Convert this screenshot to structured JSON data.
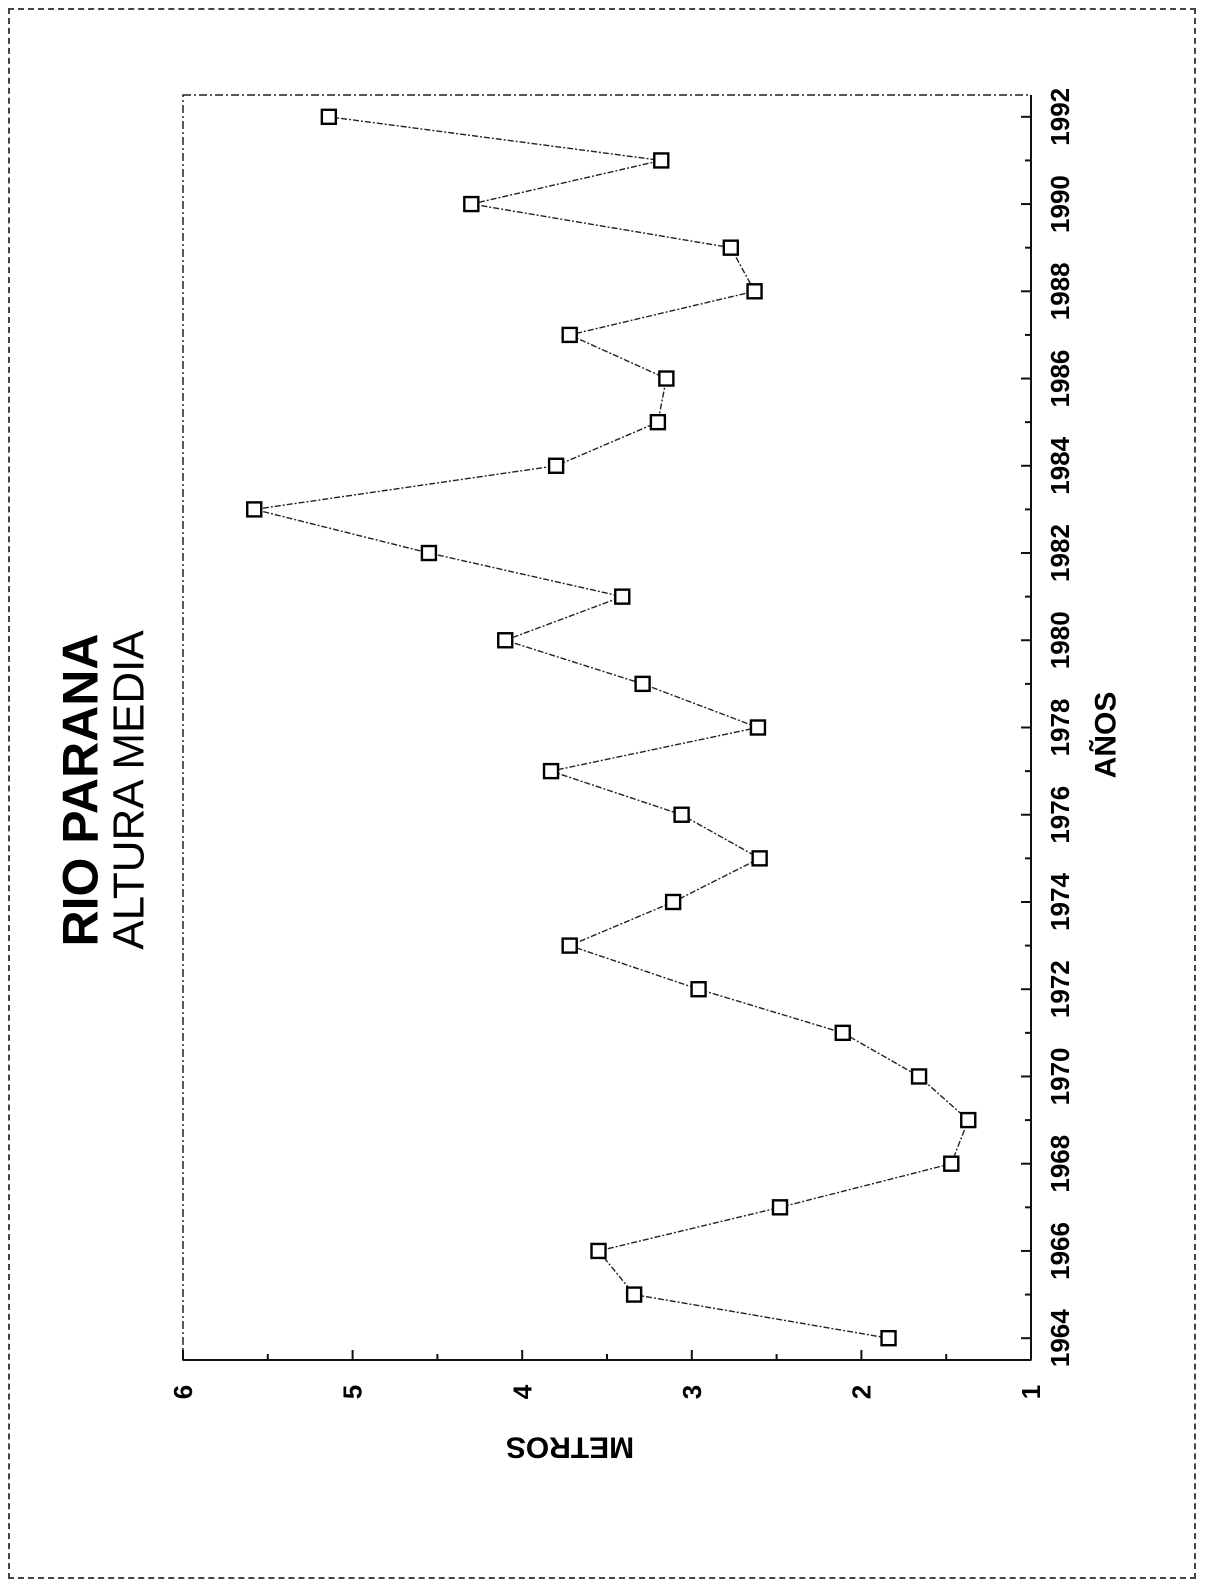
{
  "chart_data": {
    "type": "line",
    "title": "RIO PARANA",
    "subtitle": "ALTURA MEDIA",
    "xlabel": "AÑOS",
    "ylabel": "METROS",
    "xlim": [
      1963.5,
      1992.5
    ],
    "ylim": [
      1,
      6
    ],
    "x_ticks": [
      "1964",
      "1966",
      "1968",
      "1970",
      "1972",
      "1974",
      "1976",
      "1978",
      "1980",
      "1982",
      "1984",
      "1986",
      "1988",
      "1990",
      "1992"
    ],
    "y_ticks": [
      "1",
      "2",
      "3",
      "4",
      "5",
      "6"
    ],
    "grid": false,
    "orientation": "rotated-90",
    "marker": "square",
    "series": [
      {
        "x": [
          1964,
          1965,
          1966,
          1967,
          1968,
          1969,
          1970,
          1971,
          1972,
          1973,
          1974,
          1975,
          1976,
          1977,
          1978,
          1979,
          1980,
          1981,
          1982,
          1983,
          1984,
          1985,
          1986,
          1987,
          1988,
          1989,
          1990,
          1991,
          1992
        ],
        "values": [
          1.84,
          3.34,
          3.55,
          2.48,
          1.47,
          1.37,
          1.66,
          2.11,
          2.96,
          3.72,
          3.11,
          2.6,
          3.06,
          3.83,
          2.61,
          3.29,
          4.1,
          3.41,
          4.55,
          5.58,
          3.8,
          3.2,
          3.15,
          3.72,
          2.63,
          2.77,
          4.3,
          3.18,
          5.14
        ]
      }
    ]
  }
}
